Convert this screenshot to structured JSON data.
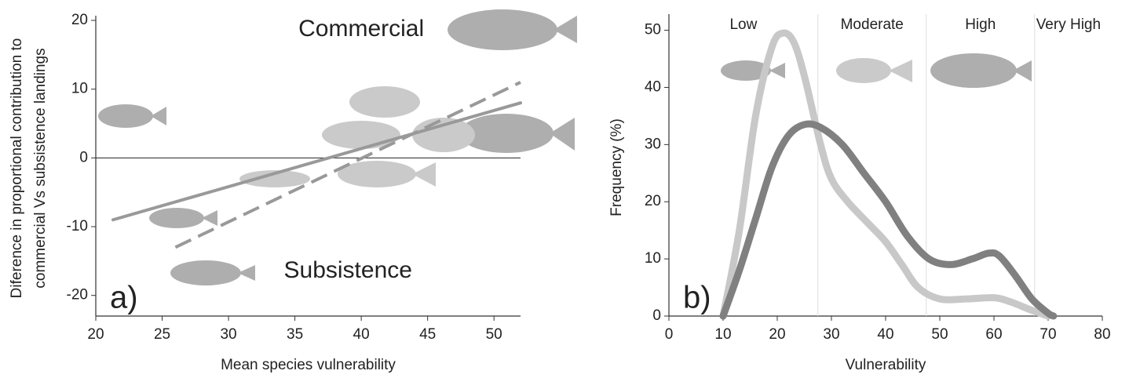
{
  "chart_data": [
    {
      "type": "line",
      "xlabel": "Mean species vulnerability",
      "ylabel": [
        "Diference in proportional contribution to",
        "commercial  Vs subsistence landings"
      ],
      "annotations": [
        "Commercial",
        "Subsistence"
      ],
      "panel_label": "a)",
      "xlim": [
        20,
        52
      ],
      "ylim": [
        -23,
        20
      ],
      "xticks": [
        20,
        25,
        30,
        35,
        40,
        45,
        50
      ],
      "yticks": [
        -20,
        -10,
        0,
        10,
        20
      ],
      "reference_line": 0,
      "series": [
        {
          "color": "#999999",
          "style": "solid",
          "x": [
            21.3,
            52
          ],
          "values": [
            -9,
            8
          ]
        },
        {
          "color": "#999999",
          "style": "dashed",
          "x": [
            26,
            52
          ],
          "values": [
            -13,
            11
          ]
        }
      ]
    },
    {
      "type": "line",
      "xlabel": "Vulnerability",
      "ylabel": [
        "Frequency (%)"
      ],
      "panel_label": "b)",
      "xlim": [
        0,
        80
      ],
      "ylim": [
        0,
        52
      ],
      "xticks": [
        0,
        10,
        20,
        30,
        40,
        50,
        60,
        70,
        80
      ],
      "yticks": [
        0,
        10,
        20,
        30,
        40,
        50
      ],
      "zone_bounds": [
        27.5,
        47.5,
        67.5
      ],
      "zones": [
        "Low",
        "Moderate",
        "High",
        "Very High"
      ],
      "series": [
        {
          "color": "#c8c8c8",
          "x": [
            10,
            13,
            16,
            19,
            21,
            23,
            25,
            28,
            30,
            33,
            37,
            40,
            43,
            46,
            50,
            55,
            60,
            63,
            67,
            70
          ],
          "values": [
            0,
            15,
            35,
            47,
            49.5,
            48,
            42,
            30,
            24,
            20,
            16,
            13,
            9,
            5,
            3,
            3,
            3.2,
            2.5,
            1,
            0
          ]
        },
        {
          "color": "#808080",
          "x": [
            10,
            13,
            16,
            19,
            22,
            25,
            28,
            32,
            36,
            40,
            44,
            48,
            52,
            56,
            59,
            61,
            64,
            67,
            70,
            71
          ],
          "values": [
            0,
            8,
            17,
            26,
            31.5,
            33.5,
            33,
            30,
            25,
            20,
            14,
            10,
            9,
            10,
            11,
            10.5,
            7,
            3,
            0.5,
            0
          ]
        }
      ]
    }
  ]
}
